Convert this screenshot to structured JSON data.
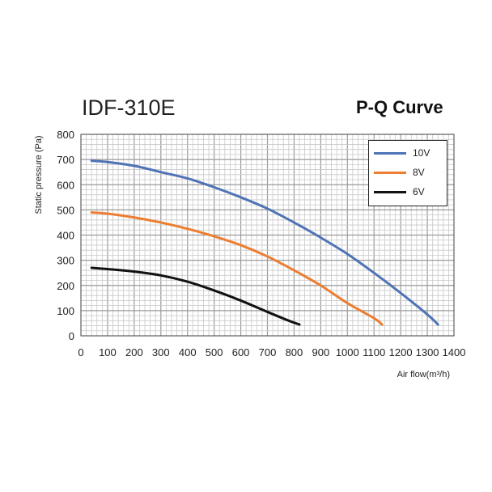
{
  "chart_data": {
    "type": "line",
    "title": "P-Q Curve",
    "subtitle": "IDF-310E",
    "xlabel": "Air flow(m³/h)",
    "ylabel": "Static pressure (Pa)",
    "xlim": [
      0,
      1400
    ],
    "ylim": [
      0,
      800
    ],
    "x_ticks": [
      0,
      100,
      200,
      300,
      400,
      500,
      600,
      700,
      800,
      900,
      1000,
      1100,
      1200,
      1300,
      1400
    ],
    "y_ticks": [
      0,
      100,
      200,
      300,
      400,
      500,
      600,
      700,
      800
    ],
    "grid": true,
    "legend_position": "top-right",
    "series": [
      {
        "name": "10V",
        "color": "#4f73b6",
        "x": [
          40,
          100,
          200,
          300,
          400,
          500,
          600,
          700,
          800,
          900,
          1000,
          1100,
          1200,
          1300,
          1340
        ],
        "y": [
          695,
          690,
          675,
          650,
          625,
          590,
          550,
          505,
          450,
          390,
          325,
          250,
          170,
          85,
          45
        ]
      },
      {
        "name": "8V",
        "color": "#ed7d31",
        "x": [
          40,
          100,
          200,
          300,
          400,
          500,
          600,
          700,
          800,
          900,
          1000,
          1100,
          1130
        ],
        "y": [
          490,
          485,
          470,
          450,
          425,
          395,
          360,
          315,
          260,
          200,
          130,
          70,
          45
        ]
      },
      {
        "name": "6V",
        "color": "#111111",
        "x": [
          40,
          100,
          200,
          300,
          400,
          500,
          600,
          700,
          780,
          820
        ],
        "y": [
          270,
          265,
          255,
          240,
          215,
          180,
          140,
          95,
          60,
          45
        ]
      }
    ]
  }
}
